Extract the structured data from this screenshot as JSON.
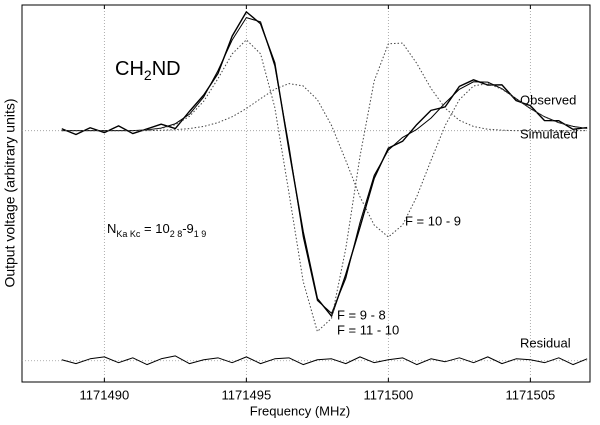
{
  "chart_data": {
    "type": "line",
    "xlabel": "Frequency (MHz)",
    "ylabel": "Output voltage (arbitrary units)",
    "molecule": [
      "CH",
      "2",
      "ND"
    ],
    "quantum_label": [
      "N",
      "Ka Kc",
      " = 10",
      "2 8",
      "-9",
      "1 9"
    ],
    "xlim": [
      1171487.1,
      1171507.1
    ],
    "xticks": [
      1171490,
      1171495,
      1171500,
      1171505
    ],
    "ylim": [
      -2.6,
      1.3
    ],
    "yticks": [
      -2.38,
      0
    ],
    "grid": true,
    "x": [
      1171488.5,
      1171489,
      1171489.5,
      1171490,
      1171490.5,
      1171491,
      1171491.5,
      1171492,
      1171492.5,
      1171493,
      1171493.5,
      1171494,
      1171494.5,
      1171495,
      1171495.5,
      1171496,
      1171496.5,
      1171497,
      1171497.5,
      1171498,
      1171498.5,
      1171499,
      1171499.5,
      1171500,
      1171500.5,
      1171501,
      1171501.5,
      1171502,
      1171502.5,
      1171503,
      1171503.5,
      1171504,
      1171504.5,
      1171505,
      1171505.5,
      1171506,
      1171506.5,
      1171507
    ],
    "series": [
      {
        "name": "Observed",
        "color": "#000000",
        "style": "solid",
        "values": [
          0.02,
          -0.04,
          0.03,
          -0.02,
          0.05,
          -0.03,
          0.018,
          0.067,
          0.022,
          0.201,
          0.369,
          0.591,
          0.978,
          1.229,
          1.106,
          0.701,
          -0.197,
          -1.046,
          -1.737,
          -1.919,
          -1.489,
          -1.0,
          -0.493,
          -0.181,
          -0.11,
          0.063,
          0.21,
          0.246,
          0.458,
          0.526,
          0.472,
          0.474,
          0.311,
          0.259,
          0.104,
          0.103,
          0.014,
          0.032
        ]
      },
      {
        "name": "Simulated",
        "color": "#000000",
        "style": "solid",
        "values": [
          0,
          0,
          0,
          0,
          0,
          0,
          0.008,
          0.027,
          0.072,
          0.171,
          0.349,
          0.621,
          0.938,
          1.169,
          1.126,
          0.671,
          -0.157,
          -1.096,
          -1.757,
          -1.889,
          -1.529,
          -0.95,
          -0.463,
          -0.201,
          -0.07,
          0.013,
          0.13,
          0.286,
          0.428,
          0.506,
          0.502,
          0.434,
          0.331,
          0.229,
          0.144,
          0.083,
          0.044,
          0.022
        ]
      },
      {
        "name": [
          "F =  9 - 8",
          "F = 11 - 10"
        ],
        "color": "#444444",
        "style": "dotted",
        "values": [
          0,
          0,
          0,
          0,
          0,
          0,
          0.008,
          0.023,
          0.062,
          0.149,
          0.305,
          0.538,
          0.794,
          0.94,
          0.795,
          0.242,
          -0.644,
          -1.559,
          -2.078,
          -1.942,
          -1.221,
          -0.267,
          0.513,
          0.899,
          0.906,
          0.696,
          0.438,
          0.233,
          0.107,
          0.043,
          0.015,
          0.005,
          0,
          0,
          0,
          0,
          0,
          0
        ]
      },
      {
        "name": "F = 10 -  9",
        "color": "#444444",
        "style": "dotted",
        "values": [
          0,
          0,
          0,
          0,
          0,
          0,
          0,
          0.004,
          0.01,
          0.022,
          0.044,
          0.083,
          0.144,
          0.229,
          0.331,
          0.429,
          0.487,
          0.463,
          0.321,
          0.053,
          -0.308,
          -0.683,
          -0.976,
          -1.1,
          -0.976,
          -0.683,
          -0.308,
          0.053,
          0.321,
          0.463,
          0.487,
          0.429,
          0.331,
          0.229,
          0.144,
          0.083,
          0.044,
          0.022
        ]
      },
      {
        "name": "Residual",
        "color": "#000000",
        "style": "solid",
        "values": [
          -2.37,
          -2.41,
          -2.36,
          -2.34,
          -2.4,
          -2.35,
          -2.42,
          -2.36,
          -2.33,
          -2.41,
          -2.37,
          -2.35,
          -2.4,
          -2.34,
          -2.41,
          -2.36,
          -2.35,
          -2.42,
          -2.37,
          -2.36,
          -2.41,
          -2.34,
          -2.4,
          -2.37,
          -2.35,
          -2.42,
          -2.36,
          -2.39,
          -2.35,
          -2.4,
          -2.34,
          -2.41,
          -2.36,
          -2.37,
          -2.4,
          -2.35,
          -2.42,
          -2.36
        ]
      }
    ]
  }
}
